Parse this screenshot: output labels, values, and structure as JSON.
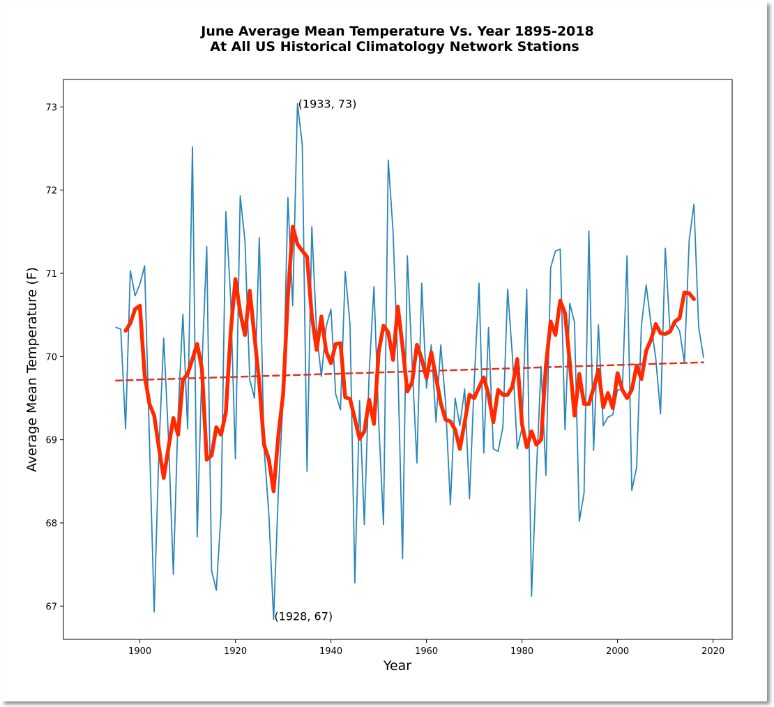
{
  "chart_data": {
    "type": "line",
    "title_line1": "June Average Mean Temperature Vs. Year 1895-2018",
    "title_line2": "At All US Historical Climatology Network Stations",
    "xlabel": "Year",
    "ylabel": "Average Mean Temperature (F)",
    "xlim": [
      1884,
      2024
    ],
    "ylim": [
      66.6,
      73.33
    ],
    "xticks": [
      1900,
      1920,
      1940,
      1960,
      1980,
      2000,
      2020
    ],
    "yticks": [
      67,
      68,
      69,
      70,
      71,
      72,
      73
    ],
    "grid": false,
    "series": [
      {
        "color": "#2a85b8",
        "x": [
          1895,
          1896,
          1897,
          1898,
          1899,
          1900,
          1901,
          1902,
          1903,
          1904,
          1905,
          1906,
          1907,
          1908,
          1909,
          1910,
          1911,
          1912,
          1913,
          1914,
          1915,
          1916,
          1917,
          1918,
          1919,
          1920,
          1921,
          1922,
          1923,
          1924,
          1925,
          1926,
          1927,
          1928,
          1929,
          1930,
          1931,
          1932,
          1933,
          1934,
          1935,
          1936,
          1937,
          1938,
          1939,
          1940,
          1941,
          1942,
          1943,
          1944,
          1945,
          1946,
          1947,
          1948,
          1949,
          1950,
          1951,
          1952,
          1953,
          1954,
          1955,
          1956,
          1957,
          1958,
          1959,
          1960,
          1961,
          1962,
          1963,
          1964,
          1965,
          1966,
          1967,
          1968,
          1969,
          1970,
          1971,
          1972,
          1973,
          1974,
          1975,
          1976,
          1977,
          1978,
          1979,
          1980,
          1981,
          1982,
          1983,
          1984,
          1985,
          1986,
          1987,
          1988,
          1989,
          1990,
          1991,
          1992,
          1993,
          1994,
          1995,
          1996,
          1997,
          1998,
          1999,
          2000,
          2001,
          2002,
          2003,
          2004,
          2005,
          2006,
          2007,
          2008,
          2009,
          2010,
          2011,
          2012,
          2013,
          2014,
          2015,
          2016,
          2017,
          2018
        ],
        "values": [
          70.35,
          70.33,
          69.13,
          71.03,
          70.73,
          70.87,
          71.09,
          69.0,
          66.93,
          68.9,
          70.22,
          69.0,
          67.38,
          69.3,
          70.51,
          69.13,
          72.52,
          67.83,
          69.88,
          71.32,
          67.43,
          67.19,
          68.12,
          71.74,
          70.7,
          68.77,
          71.93,
          71.39,
          69.72,
          69.5,
          71.43,
          68.9,
          68.1,
          66.84,
          68.4,
          69.5,
          71.91,
          70.61,
          73.04,
          72.55,
          68.62,
          71.56,
          70.28,
          69.76,
          70.36,
          70.57,
          69.55,
          69.36,
          71.02,
          70.38,
          67.28,
          69.47,
          67.98,
          69.8,
          70.84,
          69.22,
          67.98,
          72.36,
          71.5,
          69.92,
          67.57,
          71.21,
          69.92,
          68.72,
          70.88,
          69.62,
          70.14,
          69.21,
          70.14,
          69.44,
          68.22,
          69.5,
          69.17,
          69.61,
          68.29,
          69.69,
          70.88,
          68.84,
          70.35,
          68.89,
          68.86,
          69.15,
          70.81,
          70.0,
          68.89,
          69.14,
          70.81,
          67.12,
          68.6,
          69.88,
          68.57,
          71.07,
          71.27,
          71.29,
          69.12,
          70.64,
          70.41,
          68.02,
          68.36,
          71.51,
          68.87,
          70.38,
          69.17,
          69.27,
          69.3,
          69.6,
          69.6,
          71.21,
          68.39,
          68.67,
          70.38,
          70.86,
          70.4,
          69.98,
          69.31,
          71.3,
          70.28,
          70.4,
          70.31,
          69.93,
          71.4,
          71.83,
          70.35,
          69.99
        ]
      },
      {
        "color": "#ff2a00",
        "x": [
          1897,
          1898,
          1899,
          1900,
          1901,
          1902,
          1903,
          1904,
          1905,
          1906,
          1907,
          1908,
          1909,
          1910,
          1911,
          1912,
          1913,
          1914,
          1915,
          1916,
          1917,
          1918,
          1919,
          1920,
          1921,
          1922,
          1923,
          1924,
          1925,
          1926,
          1927,
          1928,
          1929,
          1930,
          1931,
          1932,
          1933,
          1934,
          1935,
          1936,
          1937,
          1938,
          1939,
          1940,
          1941,
          1942,
          1943,
          1944,
          1945,
          1946,
          1947,
          1948,
          1949,
          1950,
          1951,
          1952,
          1953,
          1954,
          1955,
          1956,
          1957,
          1958,
          1959,
          1960,
          1961,
          1962,
          1963,
          1964,
          1965,
          1966,
          1967,
          1968,
          1969,
          1970,
          1971,
          1972,
          1973,
          1974,
          1975,
          1976,
          1977,
          1978,
          1979,
          1980,
          1981,
          1982,
          1983,
          1984,
          1985,
          1986,
          1987,
          1988,
          1989,
          1990,
          1991,
          1992,
          1993,
          1994,
          1995,
          1996,
          1997,
          1998,
          1999,
          2000,
          2001,
          2002,
          2003,
          2004,
          2005,
          2006,
          2007,
          2008,
          2009,
          2010,
          2011,
          2012,
          2013,
          2014,
          2015,
          2016
        ],
        "values": [
          70.31,
          70.4,
          70.57,
          70.61,
          69.78,
          69.43,
          69.29,
          68.9,
          68.54,
          68.91,
          69.26,
          69.06,
          69.72,
          69.79,
          69.97,
          70.15,
          69.85,
          68.76,
          68.81,
          69.15,
          69.06,
          69.33,
          70.29,
          70.93,
          70.53,
          70.26,
          70.79,
          70.24,
          69.68,
          68.94,
          68.76,
          68.38,
          69.06,
          69.55,
          70.73,
          71.56,
          71.35,
          71.27,
          71.2,
          70.49,
          70.08,
          70.48,
          70.06,
          69.92,
          70.15,
          70.16,
          69.51,
          69.49,
          69.25,
          69.01,
          69.1,
          69.48,
          69.19,
          70.06,
          70.37,
          70.29,
          69.96,
          70.6,
          70.12,
          69.58,
          69.69,
          70.14,
          69.97,
          69.74,
          70.05,
          69.75,
          69.44,
          69.24,
          69.22,
          69.12,
          68.89,
          69.21,
          69.54,
          69.5,
          69.63,
          69.75,
          69.54,
          69.21,
          69.6,
          69.54,
          69.54,
          69.64,
          69.97,
          69.19,
          68.91,
          69.1,
          68.94,
          69.0,
          69.89,
          70.42,
          70.26,
          70.67,
          70.52,
          69.93,
          69.29,
          69.79,
          69.43,
          69.43,
          69.62,
          69.84,
          69.39,
          69.56,
          69.38,
          69.8,
          69.6,
          69.5,
          69.6,
          69.89,
          69.73,
          70.07,
          70.2,
          70.39,
          70.28,
          70.27,
          70.3,
          70.42,
          70.46,
          70.77,
          70.76,
          70.69
        ]
      },
      {
        "color": "#e0301e",
        "x": [
          1895,
          2018
        ],
        "values": [
          69.71,
          69.93
        ]
      }
    ],
    "annotations": [
      {
        "text": "(1933, 73)",
        "x": 1933,
        "y": 73.0
      },
      {
        "text": "(1928, 67)",
        "x": 1928,
        "y": 66.84
      }
    ]
  }
}
